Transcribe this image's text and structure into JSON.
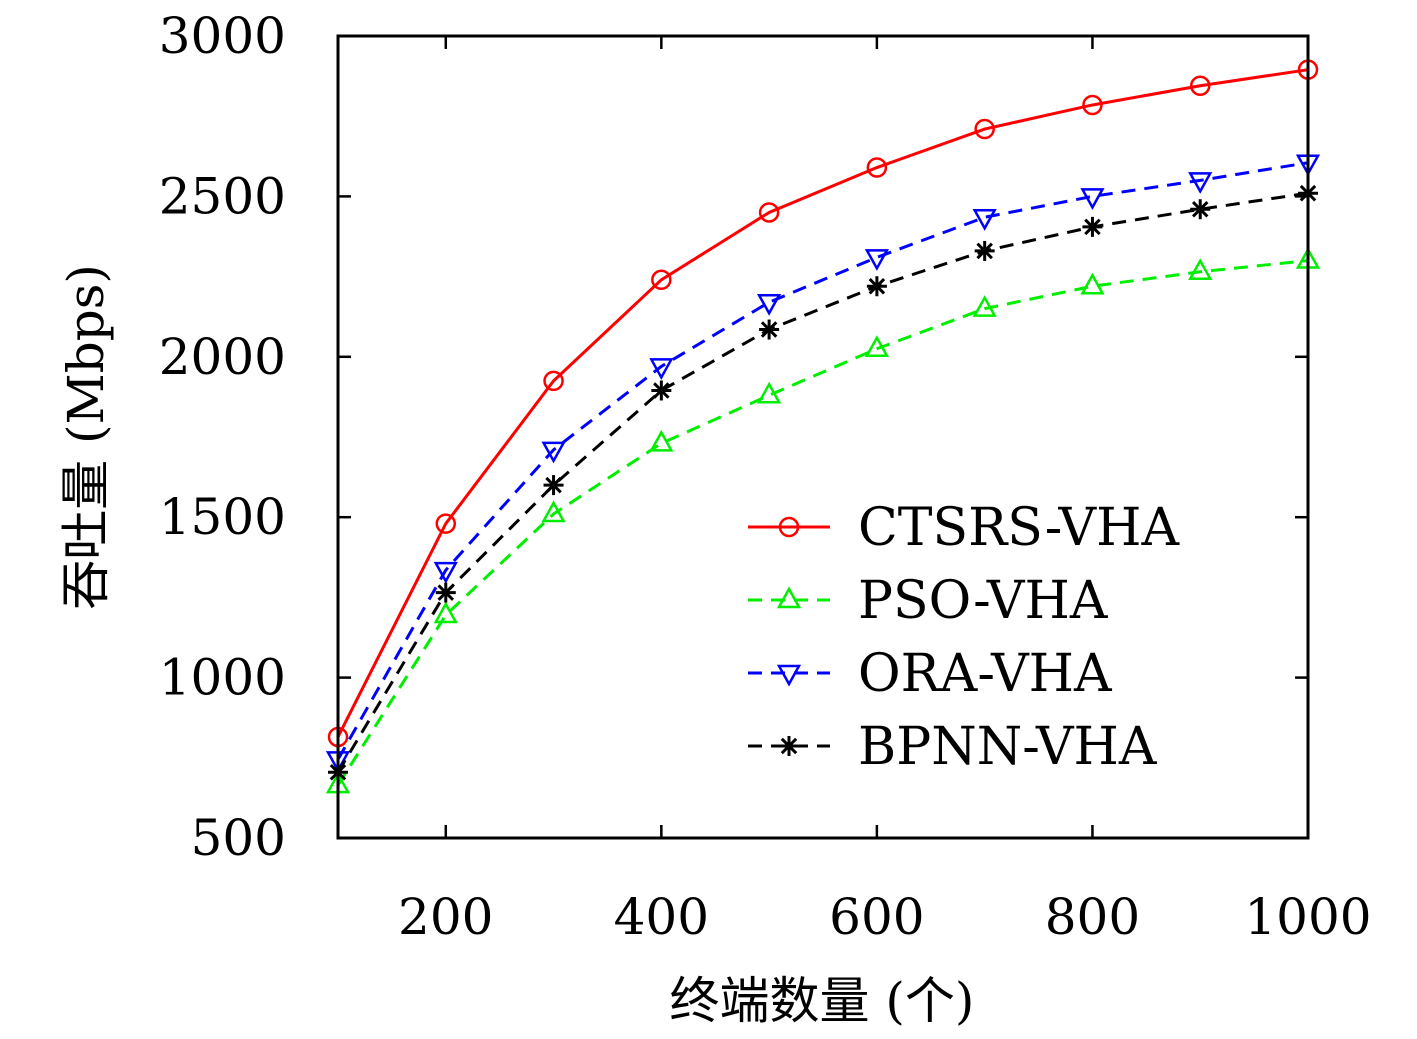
{
  "chart_data": {
    "type": "line",
    "xlabel": "终端数量 (个)",
    "ylabel": "吞吐量 (Mbps)",
    "xlim": [
      100,
      1000
    ],
    "ylim": [
      500,
      3000
    ],
    "x_ticks": [
      200,
      400,
      600,
      800,
      1000
    ],
    "y_ticks": [
      500,
      1000,
      1500,
      2000,
      2500,
      3000
    ],
    "grid": false,
    "legend_position": "bottom-right",
    "x": [
      100,
      200,
      300,
      400,
      500,
      600,
      700,
      800,
      900,
      1000
    ],
    "series": [
      {
        "name": "CTSRS-VHA",
        "color": "#ff0000",
        "line_style": "solid",
        "marker": "circle",
        "values": [
          815,
          1480,
          1925,
          2240,
          2450,
          2590,
          2710,
          2785,
          2845,
          2895
        ]
      },
      {
        "name": "PSO-VHA",
        "color": "#00ee00",
        "line_style": "dashed",
        "marker": "triangle-up",
        "values": [
          665,
          1195,
          1510,
          1730,
          1880,
          2025,
          2150,
          2220,
          2265,
          2300
        ]
      },
      {
        "name": "ORA-VHA",
        "color": "#0000ff",
        "line_style": "dashed",
        "marker": "triangle-down",
        "values": [
          745,
          1335,
          1710,
          1970,
          2170,
          2310,
          2435,
          2500,
          2550,
          2605
        ]
      },
      {
        "name": "BPNN-VHA",
        "color": "#000000",
        "line_style": "dashed",
        "marker": "asterisk",
        "values": [
          705,
          1265,
          1600,
          1895,
          2085,
          2220,
          2330,
          2405,
          2460,
          2510
        ]
      }
    ]
  }
}
